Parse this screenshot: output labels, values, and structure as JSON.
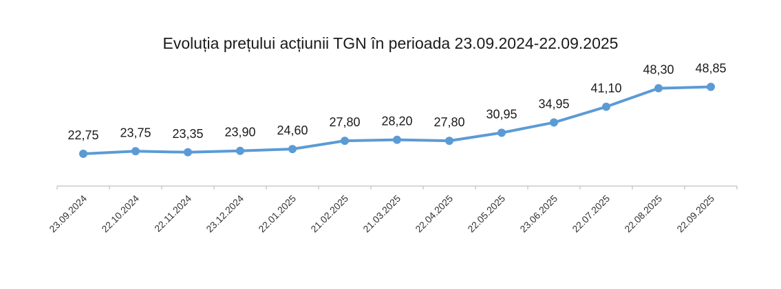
{
  "chart_data": {
    "type": "line",
    "title": "Evoluția prețului acțiunii TGN în perioada 23.09.2024-22.09.2025",
    "xlabel": "",
    "ylabel": "",
    "categories": [
      "23.09.2024",
      "22.10.2024",
      "22.11.2024",
      "23.12.2024",
      "22.01.2025",
      "21.02.2025",
      "21.03.2025",
      "22.04.2025",
      "22.05.2025",
      "23.06.2025",
      "22.07.2025",
      "22.08.2025",
      "22.09.2025"
    ],
    "series": [
      {
        "values": [
          22.75,
          23.75,
          23.35,
          23.9,
          24.6,
          27.8,
          28.2,
          27.8,
          30.95,
          34.95,
          41.1,
          48.3,
          48.85
        ],
        "labels": [
          "22,75",
          "23,75",
          "23,35",
          "23,90",
          "24,60",
          "27,80",
          "28,20",
          "27,80",
          "30,95",
          "34,95",
          "41,10",
          "48,30",
          "48,85"
        ],
        "color": "#5b9bd5"
      }
    ],
    "grid": false,
    "legend": "none",
    "axis_color": "#bfbfbf"
  }
}
